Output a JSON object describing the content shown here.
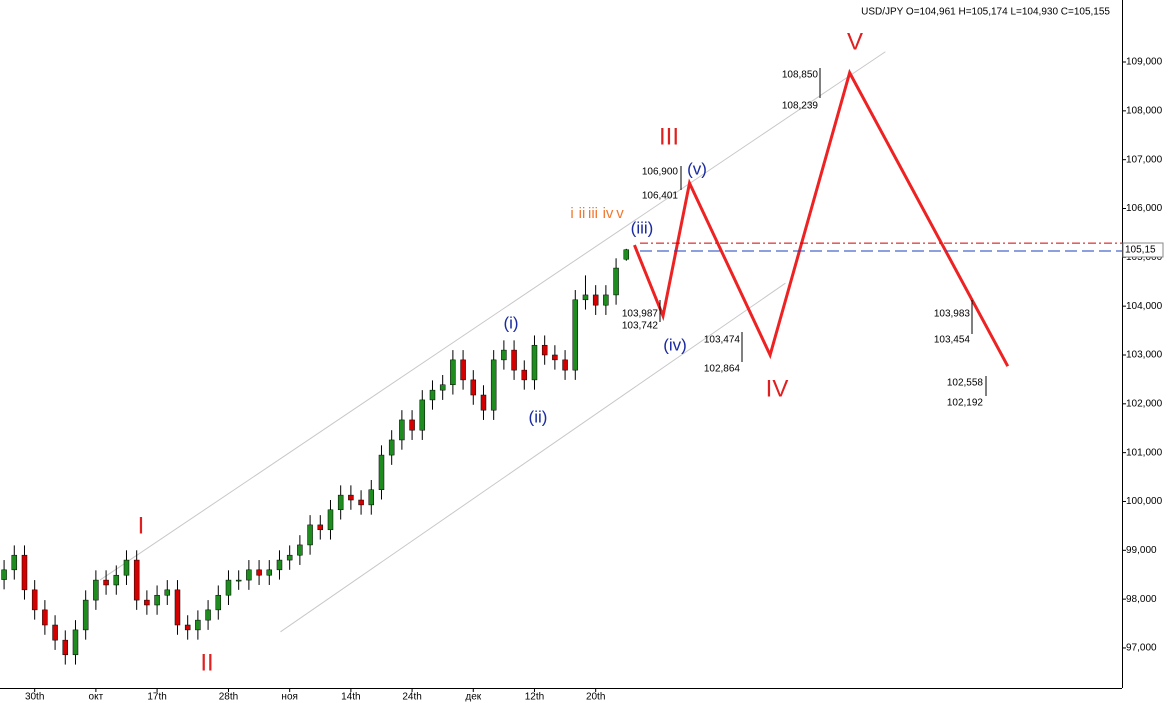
{
  "chart_data": {
    "type": "candlestick",
    "title": "USD/JPY O=104,961 H=105,174 L=104,930 C=105,155",
    "up_color": "#1e8c1e",
    "down_color": "#d40000",
    "ohlc": [
      [
        98.4,
        98.8,
        98.2,
        98.6
      ],
      [
        98.6,
        99.1,
        98.4,
        98.9
      ],
      [
        98.9,
        99.1,
        97.99,
        98.19
      ],
      [
        98.19,
        98.39,
        97.58,
        97.78
      ],
      [
        97.78,
        97.98,
        97.27,
        97.47
      ],
      [
        97.47,
        97.67,
        96.96,
        97.16
      ],
      [
        97.16,
        97.36,
        96.66,
        96.86
      ],
      [
        96.86,
        97.57,
        96.66,
        97.37
      ],
      [
        97.37,
        98.18,
        97.17,
        97.98
      ],
      [
        97.98,
        98.59,
        97.78,
        98.39
      ],
      [
        98.39,
        98.59,
        98.09,
        98.29
      ],
      [
        98.29,
        98.69,
        98.09,
        98.49
      ],
      [
        98.49,
        99.0,
        98.29,
        98.8
      ],
      [
        98.8,
        99.0,
        97.78,
        97.98
      ],
      [
        97.98,
        98.18,
        97.68,
        97.88
      ],
      [
        97.88,
        98.28,
        97.68,
        98.08
      ],
      [
        98.08,
        98.39,
        97.88,
        98.19
      ],
      [
        98.19,
        98.39,
        97.27,
        97.47
      ],
      [
        97.47,
        97.67,
        97.17,
        97.37
      ],
      [
        97.37,
        97.77,
        97.17,
        97.57
      ],
      [
        97.57,
        97.98,
        97.37,
        97.78
      ],
      [
        97.78,
        98.28,
        97.58,
        98.08
      ],
      [
        98.08,
        98.59,
        97.88,
        98.39
      ],
      [
        98.39,
        98.59,
        98.19,
        98.39
      ],
      [
        98.39,
        98.8,
        98.19,
        98.6
      ],
      [
        98.6,
        98.8,
        98.29,
        98.49
      ],
      [
        98.49,
        98.8,
        98.29,
        98.6
      ],
      [
        98.6,
        99.0,
        98.4,
        98.8
      ],
      [
        98.8,
        99.1,
        98.6,
        98.9
      ],
      [
        98.9,
        99.31,
        98.7,
        99.11
      ],
      [
        99.11,
        99.72,
        98.91,
        99.52
      ],
      [
        99.52,
        99.72,
        99.22,
        99.42
      ],
      [
        99.42,
        100.03,
        99.22,
        99.83
      ],
      [
        99.83,
        100.33,
        99.63,
        100.13
      ],
      [
        100.13,
        100.33,
        99.83,
        100.03
      ],
      [
        100.03,
        100.23,
        99.73,
        99.93
      ],
      [
        99.93,
        100.44,
        99.73,
        100.24
      ],
      [
        100.24,
        101.15,
        100.04,
        100.95
      ],
      [
        100.95,
        101.46,
        100.75,
        101.26
      ],
      [
        101.26,
        101.87,
        101.06,
        101.67
      ],
      [
        101.67,
        101.87,
        101.26,
        101.46
      ],
      [
        101.46,
        102.28,
        101.26,
        102.08
      ],
      [
        102.08,
        102.48,
        101.88,
        102.28
      ],
      [
        102.28,
        102.59,
        102.08,
        102.39
      ],
      [
        102.39,
        103.1,
        102.19,
        102.9
      ],
      [
        102.9,
        103.1,
        102.29,
        102.49
      ],
      [
        102.49,
        102.69,
        101.98,
        102.18
      ],
      [
        102.18,
        102.38,
        101.67,
        101.87
      ],
      [
        101.87,
        103.1,
        101.67,
        102.9
      ],
      [
        102.9,
        103.3,
        102.7,
        103.1
      ],
      [
        103.1,
        103.3,
        102.49,
        102.69
      ],
      [
        102.69,
        102.89,
        102.29,
        102.49
      ],
      [
        102.49,
        103.4,
        102.29,
        103.2
      ],
      [
        103.2,
        103.4,
        102.8,
        103.0
      ],
      [
        103.0,
        103.2,
        102.7,
        102.9
      ],
      [
        102.9,
        103.1,
        102.49,
        102.69
      ],
      [
        102.69,
        104.33,
        102.49,
        104.13
      ],
      [
        104.13,
        104.63,
        103.93,
        104.23
      ],
      [
        104.23,
        104.43,
        103.82,
        104.02
      ],
      [
        104.02,
        104.43,
        103.82,
        104.23
      ],
      [
        104.23,
        104.98,
        104.03,
        104.78
      ],
      [
        104.961,
        105.174,
        104.93,
        105.155
      ]
    ],
    "xlim": [
      -0.4,
      109.6
    ],
    "xticks": [
      {
        "value": 3,
        "label": "30th"
      },
      {
        "value": 9,
        "label": "окт"
      },
      {
        "value": 15,
        "label": "17th"
      },
      {
        "value": 22,
        "label": "28th"
      },
      {
        "value": 28,
        "label": "ноя"
      },
      {
        "value": 34,
        "label": "14th"
      },
      {
        "value": 40,
        "label": "24th"
      },
      {
        "value": 46,
        "label": "дек"
      },
      {
        "value": 52,
        "label": "12th"
      },
      {
        "value": 58,
        "label": "20th"
      }
    ],
    "ylim": [
      96.18,
      110.27
    ],
    "yticks": [
      {
        "value": 97,
        "label": "97,000"
      },
      {
        "value": 98,
        "label": "98,000"
      },
      {
        "value": 99,
        "label": "99,000"
      },
      {
        "value": 100,
        "label": "100,000"
      },
      {
        "value": 101,
        "label": "101,000"
      },
      {
        "value": 102,
        "label": "102,000"
      },
      {
        "value": 103,
        "label": "103,000"
      },
      {
        "value": 104,
        "label": "104,000"
      },
      {
        "value": 105,
        "label": "105,000"
      },
      {
        "value": 106,
        "label": "106,000"
      },
      {
        "value": 107,
        "label": "107,000"
      },
      {
        "value": 108,
        "label": "108,000"
      },
      {
        "value": 109,
        "label": "109,000"
      }
    ],
    "overlays": [
      {
        "color": "#c8c8c8",
        "width": 1,
        "x": [
          9.4,
          86.4
        ],
        "values": [
          98.39,
          109.21
        ]
      },
      {
        "color": "#c8c8c8",
        "width": 1,
        "x": [
          27.1,
          76.6
        ],
        "values": [
          97.33,
          104.47
        ]
      },
      {
        "color": "#ee2222",
        "width": 3,
        "x": [
          61.8,
          64.6,
          67.2,
          75.1,
          82.9,
          98.4
        ],
        "values": [
          105.25,
          103.8,
          106.52,
          103.0,
          108.78,
          102.77
        ]
      }
    ],
    "hlines": [
      {
        "value": 105.29,
        "color": "#d40000",
        "dash": "8 3 2 3"
      },
      {
        "value": 105.13,
        "color": "#1a3fbf",
        "dash": "12 5"
      }
    ],
    "last_price": {
      "value": 105.15,
      "label": "105,15"
    },
    "wave_labels": [
      {
        "text": "I",
        "color": "#e02020"
      },
      {
        "text": "II",
        "color": "#e02020"
      },
      {
        "text": "III",
        "color": "#e02020"
      },
      {
        "text": "IV",
        "color": "#e02020"
      },
      {
        "text": "V",
        "color": "#e02020"
      },
      {
        "text": "(i)",
        "color": "#1a2aa0"
      },
      {
        "text": "(ii)",
        "color": "#1a2aa0"
      },
      {
        "text": "(iii)",
        "color": "#1a2aa0"
      },
      {
        "text": "(iv)",
        "color": "#1a2aa0"
      },
      {
        "text": "(v)",
        "color": "#1a2aa0"
      },
      {
        "text": "i",
        "color": "#f07830"
      },
      {
        "text": "ii",
        "color": "#f07830"
      },
      {
        "text": "iii",
        "color": "#f07830"
      },
      {
        "text": "iv",
        "color": "#f07830"
      },
      {
        "text": "v",
        "color": "#f07830"
      }
    ],
    "notes": [
      "108,850",
      "108,239",
      "106,900",
      "106,401",
      "103,987",
      "103,742",
      "103,474",
      "102,864",
      "103,983",
      "103,454",
      "102,558",
      "102,192"
    ]
  }
}
